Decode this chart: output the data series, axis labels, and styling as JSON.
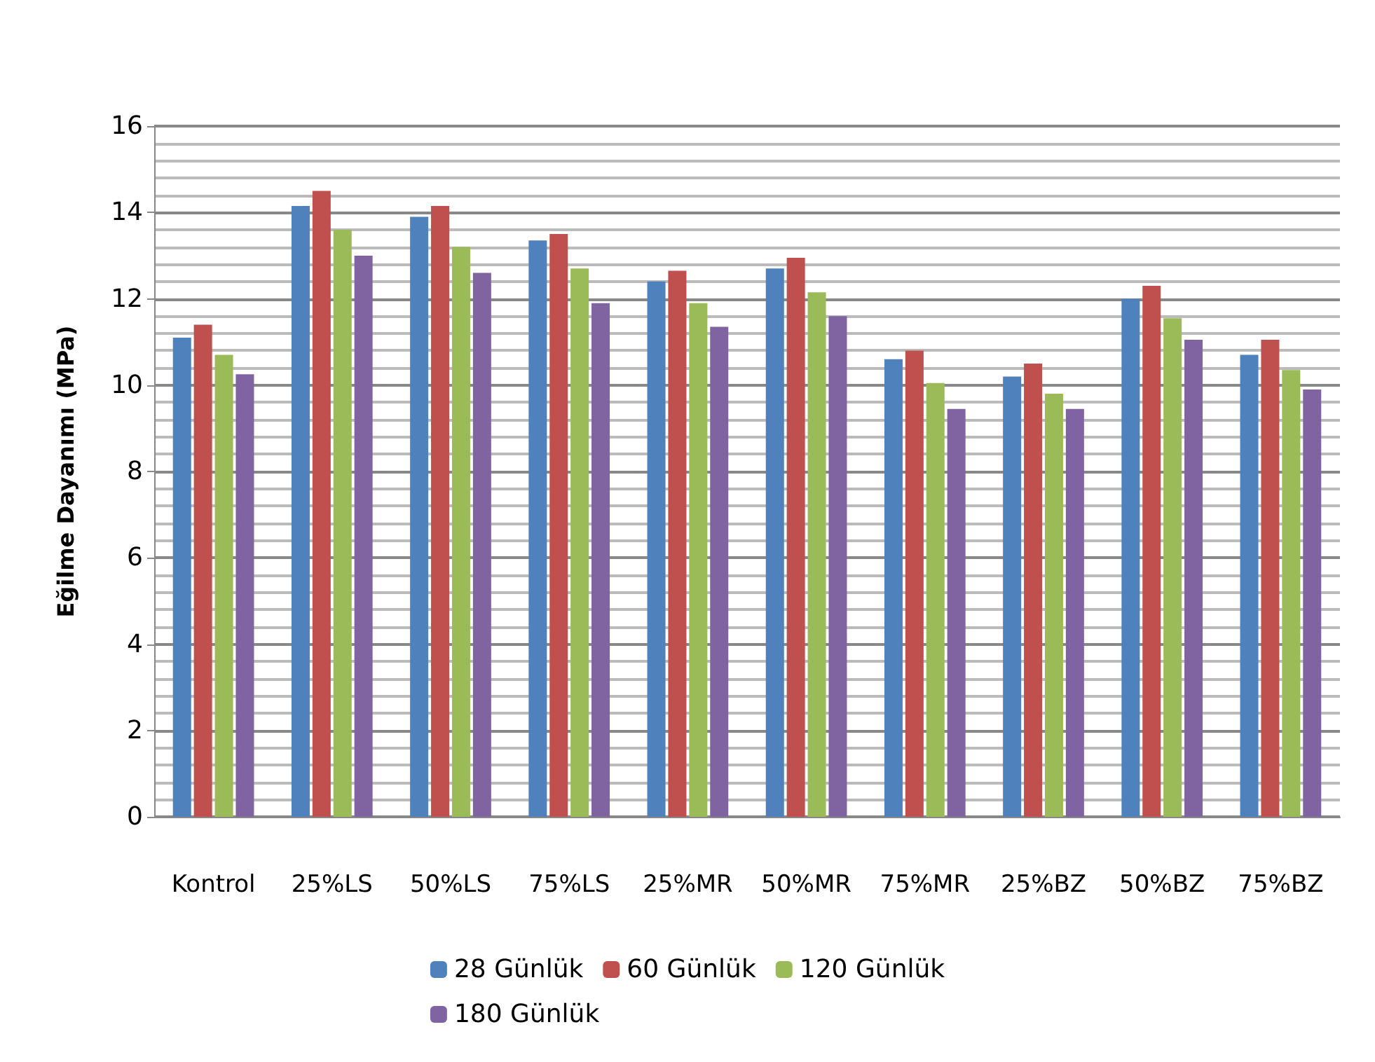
{
  "chart_data": {
    "type": "bar",
    "ylabel": "Eğilme Dayanımı (MPa)",
    "categories": [
      "Kontrol",
      "25%LS",
      "50%LS",
      "75%LS",
      "25%MR",
      "50%MR",
      "75%MR",
      "25%BZ",
      "50%BZ",
      "75%BZ"
    ],
    "series": [
      {
        "name": "28 Günlük",
        "color": "#4f81bd",
        "values": [
          11.1,
          14.15,
          13.9,
          13.35,
          12.4,
          12.7,
          10.6,
          10.2,
          12.0,
          10.7
        ]
      },
      {
        "name": "60 Günlük",
        "color": "#c0504d",
        "values": [
          11.4,
          14.5,
          14.15,
          13.5,
          12.65,
          12.95,
          10.8,
          10.5,
          12.3,
          11.05
        ]
      },
      {
        "name": "120 Günlük",
        "color": "#9bbb59",
        "values": [
          10.7,
          13.6,
          13.2,
          12.7,
          11.9,
          12.15,
          10.05,
          9.8,
          11.55,
          10.35
        ]
      },
      {
        "name": "180 Günlük",
        "color": "#8064a2",
        "values": [
          10.25,
          13.0,
          12.6,
          11.9,
          11.35,
          11.6,
          9.45,
          9.45,
          11.05,
          9.9
        ]
      }
    ],
    "ylim": [
      0,
      16
    ],
    "yticks": [
      0,
      2,
      4,
      6,
      8,
      10,
      12,
      14,
      16
    ],
    "grid": true,
    "legend": "bottom"
  }
}
